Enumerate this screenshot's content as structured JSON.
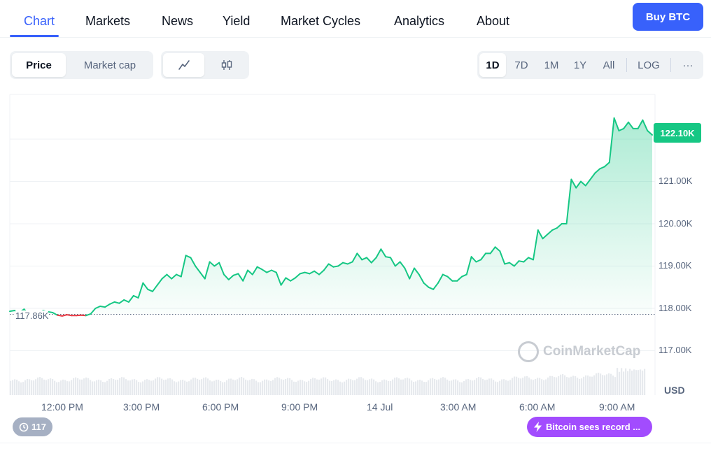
{
  "nav": {
    "tabs": [
      "Chart",
      "Markets",
      "News",
      "Yield",
      "Market Cycles",
      "Analytics",
      "About"
    ],
    "active_tab": "Chart",
    "buy_label": "Buy BTC"
  },
  "toolbar": {
    "type_options": [
      "Price",
      "Market cap"
    ],
    "type_selected": "Price",
    "chart_style_icons": [
      "line-chart-icon",
      "candlestick-icon"
    ],
    "ranges": [
      "1D",
      "7D",
      "1M",
      "1Y",
      "All"
    ],
    "range_selected": "1D",
    "log_label": "LOG",
    "more_label": "···"
  },
  "chart": {
    "current_price_label": "122.10K",
    "open_price_label": "117.86K",
    "y_ticks": [
      "121.00K",
      "120.00K",
      "119.00K",
      "118.00K",
      "117.00K"
    ],
    "x_ticks": [
      "12:00 PM",
      "3:00 PM",
      "6:00 PM",
      "9:00 PM",
      "14 Jul",
      "3:00 AM",
      "6:00 AM",
      "9:00 AM"
    ],
    "currency_label": "USD",
    "watermark": "CoinMarketCap",
    "colors": {
      "up": "#16c784",
      "down": "#ea3943",
      "accent": "#3861fb"
    }
  },
  "chart_data": {
    "type": "area",
    "ylim": [
      116.3,
      122.9
    ],
    "baseline": 117.86,
    "series": [
      {
        "values": [
          117.93,
          117.95,
          117.9,
          117.98,
          117.86,
          117.84,
          117.87,
          117.95,
          117.92,
          117.9,
          117.84,
          117.82,
          117.85,
          117.83,
          117.83,
          117.84,
          117.83,
          117.87,
          118.0,
          118.05,
          118.03,
          118.1,
          118.15,
          118.12,
          118.2,
          118.15,
          118.3,
          118.25,
          118.6,
          118.45,
          118.4,
          118.55,
          118.7,
          118.8,
          118.7,
          118.8,
          118.75,
          119.25,
          119.2,
          119.0,
          118.85,
          118.7,
          119.1,
          119.0,
          119.08,
          118.8,
          118.68,
          118.78,
          118.82,
          118.65,
          118.9,
          118.8,
          118.98,
          118.92,
          118.85,
          118.9,
          118.85,
          118.55,
          118.72,
          118.65,
          118.72,
          118.82,
          118.85,
          118.82,
          118.88,
          118.8,
          118.9,
          119.05,
          118.98,
          119.0,
          119.08,
          119.05,
          119.1,
          119.3,
          119.15,
          119.2,
          119.08,
          119.2,
          119.4,
          119.22,
          119.2,
          119.0,
          119.1,
          118.95,
          118.7,
          118.95,
          118.8,
          118.6,
          118.5,
          118.45,
          118.6,
          118.8,
          118.75,
          118.65,
          118.65,
          118.75,
          118.8,
          119.22,
          119.1,
          119.15,
          119.3,
          119.3,
          119.45,
          119.35,
          119.05,
          119.08,
          119.0,
          119.12,
          119.1,
          119.2,
          119.15,
          119.85,
          119.65,
          119.75,
          119.85,
          119.9,
          120.0,
          120.0,
          121.05,
          120.85,
          121.0,
          120.9,
          121.05,
          121.2,
          121.3,
          121.35,
          121.45,
          122.5,
          122.2,
          122.25,
          122.4,
          122.25,
          122.25,
          122.45,
          122.2,
          122.1
        ]
      }
    ]
  }
}
